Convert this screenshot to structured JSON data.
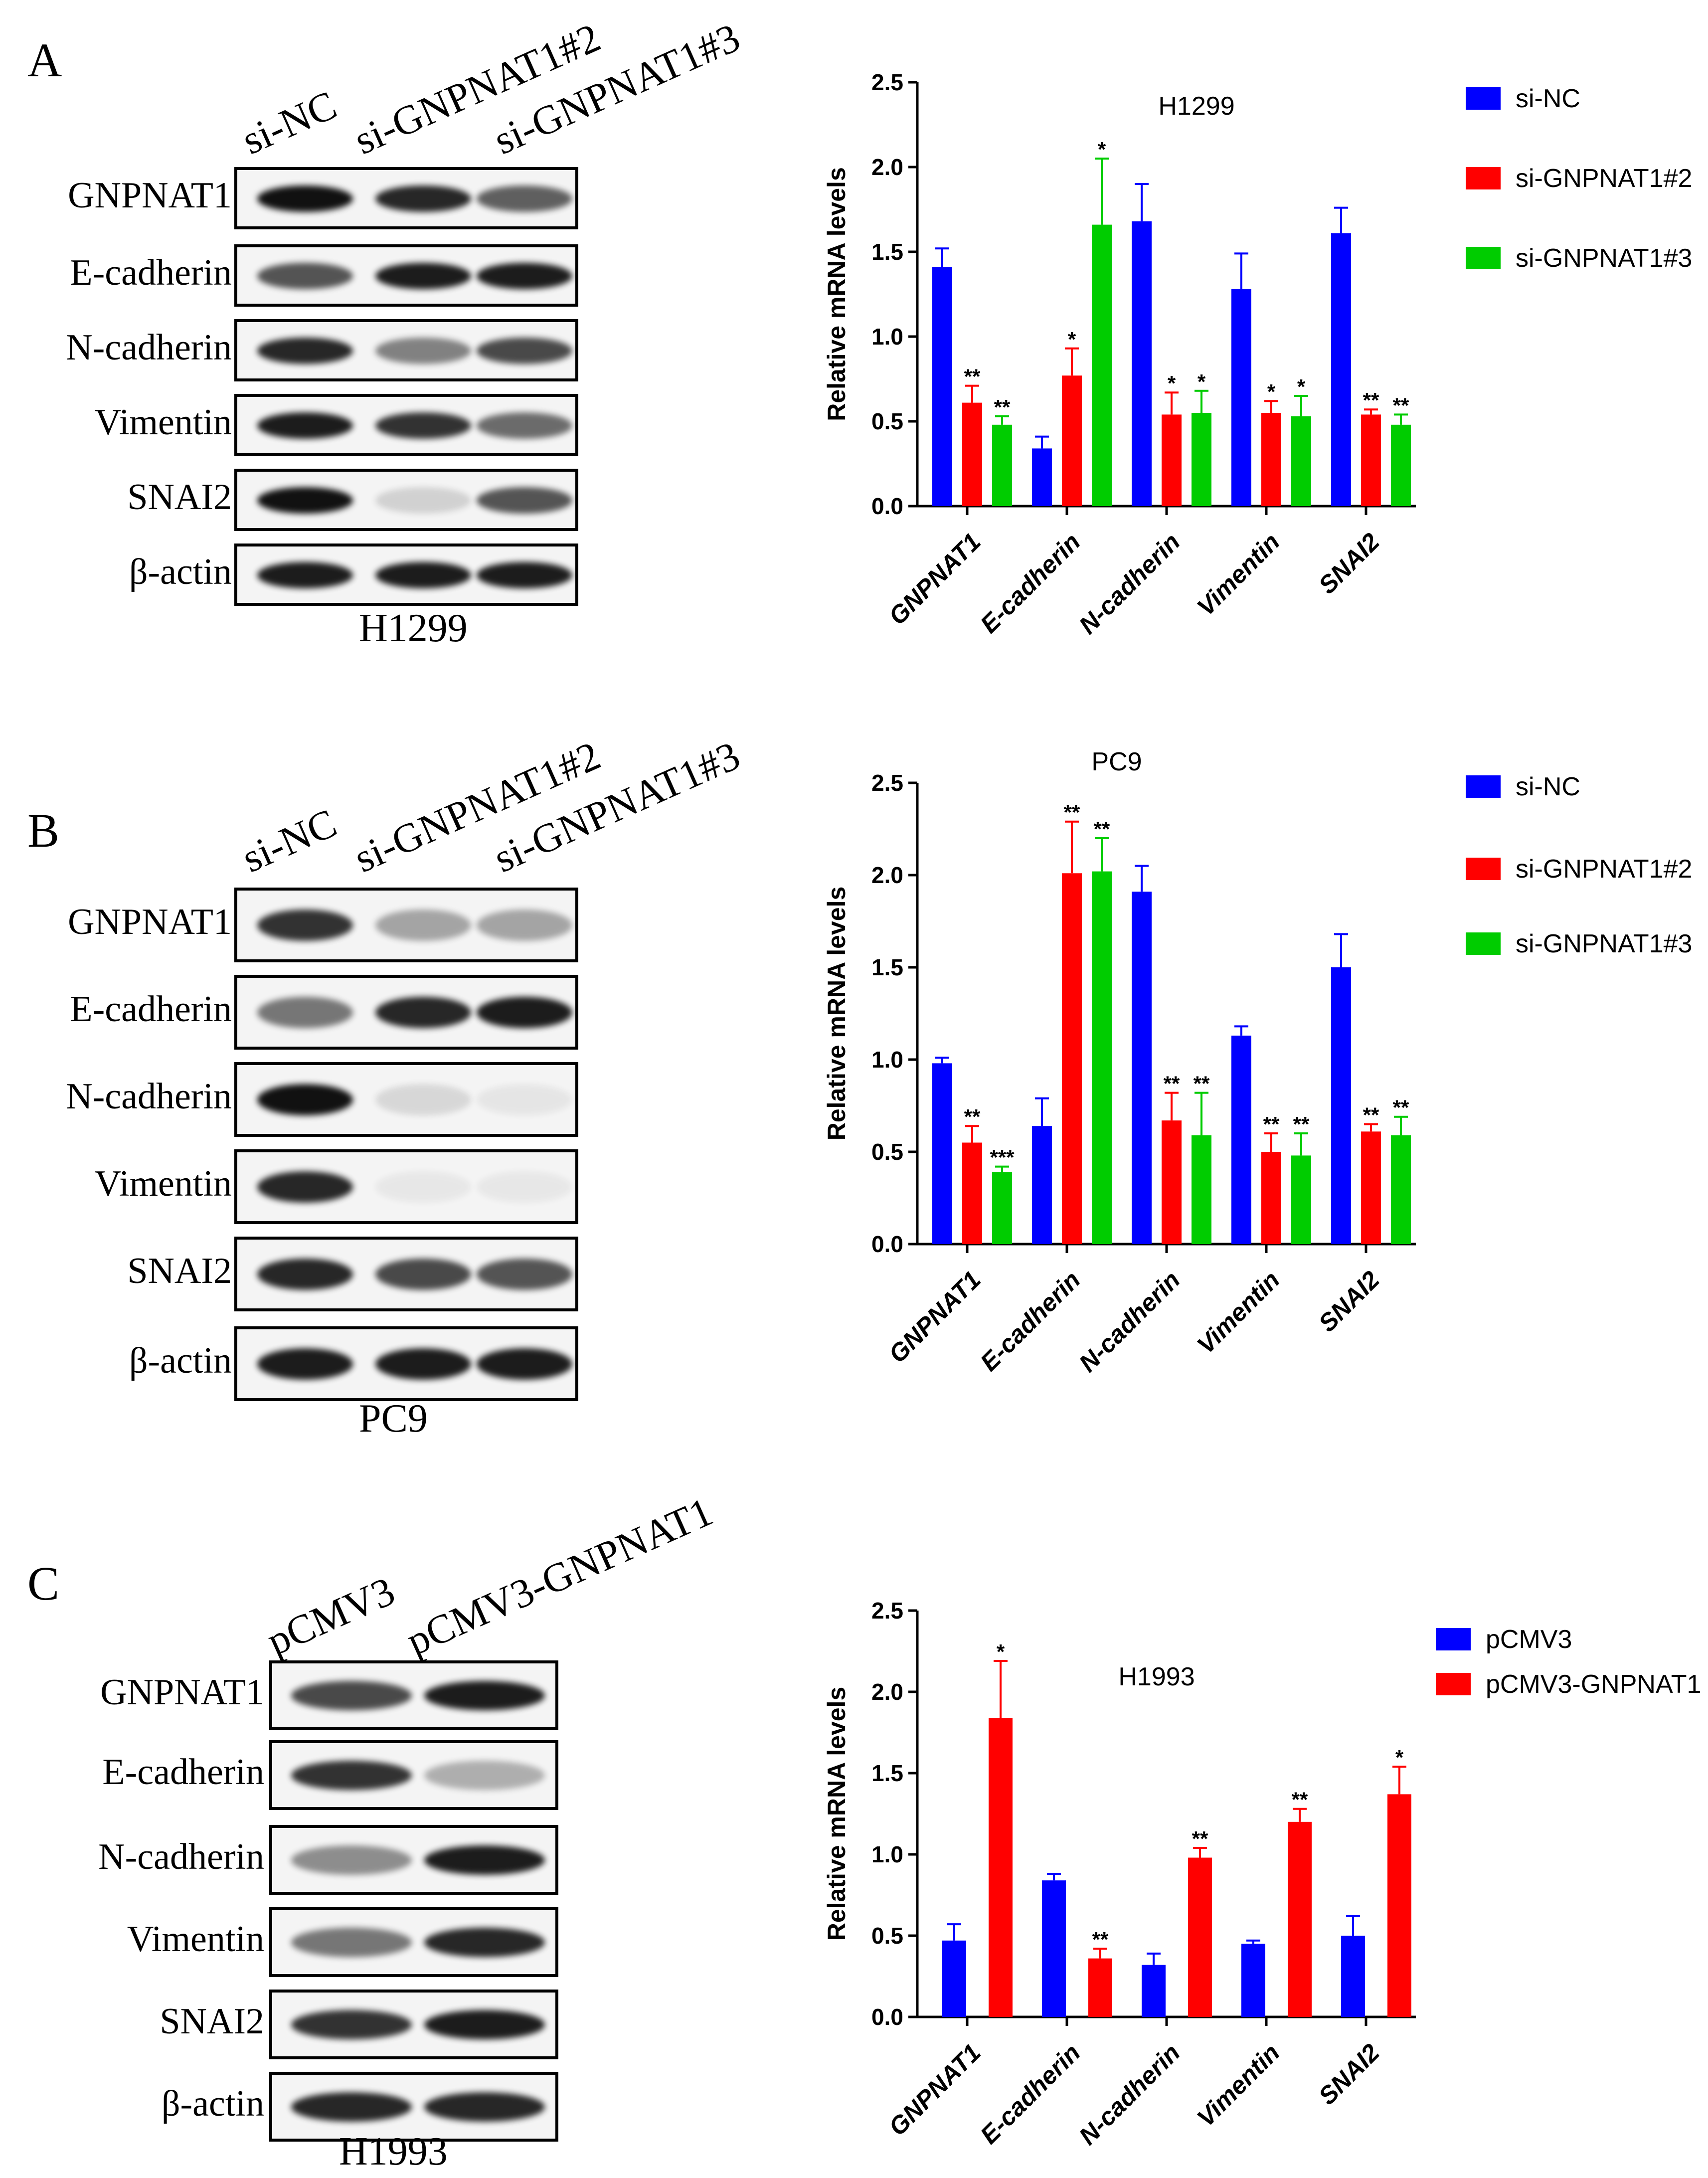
{
  "panels": [
    {
      "letter": "A",
      "cell_line": "H1299",
      "lanes": [
        "si-NC",
        "si-GNPNAT1#2",
        "si-GNPNAT1#3"
      ],
      "proteins": [
        "GNPNAT1",
        "E-cadherin",
        "N-cadherin",
        "Vimentin",
        "SNAI2",
        "β-actin"
      ],
      "band_intensity": [
        [
          1.0,
          0.9,
          0.65
        ],
        [
          0.7,
          0.95,
          0.95
        ],
        [
          0.9,
          0.5,
          0.75
        ],
        [
          0.95,
          0.85,
          0.6
        ],
        [
          1.0,
          0.15,
          0.7
        ],
        [
          0.95,
          0.95,
          0.95
        ]
      ]
    },
    {
      "letter": "B",
      "cell_line": "PC9",
      "lanes": [
        "si-NC",
        "si-GNPNAT1#2",
        "si-GNPNAT1#3"
      ],
      "proteins": [
        "GNPNAT1",
        "E-cadherin",
        "N-cadherin",
        "Vimentin",
        "SNAI2",
        "β-actin"
      ],
      "band_intensity": [
        [
          0.85,
          0.35,
          0.35
        ],
        [
          0.55,
          0.9,
          0.95
        ],
        [
          1.0,
          0.12,
          0.06
        ],
        [
          0.9,
          0.05,
          0.05
        ],
        [
          0.9,
          0.75,
          0.7
        ],
        [
          0.95,
          0.95,
          0.95
        ]
      ]
    },
    {
      "letter": "C",
      "cell_line": "H1993",
      "lanes": [
        "pCMV3",
        "pCMV3-GNPNAT1"
      ],
      "proteins": [
        "GNPNAT1",
        "E-cadherin",
        "N-cadherin",
        "Vimentin",
        "SNAI2",
        "β-actin"
      ],
      "band_intensity": [
        [
          0.75,
          0.95
        ],
        [
          0.85,
          0.3
        ],
        [
          0.45,
          0.95
        ],
        [
          0.55,
          0.9
        ],
        [
          0.85,
          0.95
        ],
        [
          0.9,
          0.9
        ]
      ]
    }
  ],
  "chart_data": [
    {
      "type": "bar",
      "title": "H1299",
      "ylabel": "Relative mRNA levels",
      "ylim": [
        0,
        2.5
      ],
      "yticks": [
        "0.0",
        "0.5",
        "1.0",
        "1.5",
        "2.0",
        "2.5"
      ],
      "categories": [
        "GNPNAT1",
        "E-cadherin",
        "N-cadherin",
        "Vimentin",
        "SNAI2"
      ],
      "series": [
        {
          "name": "si-NC",
          "color": "#0000ff",
          "values": [
            1.41,
            0.34,
            1.68,
            1.28,
            1.61
          ],
          "errors": [
            0.11,
            0.07,
            0.22,
            0.21,
            0.15
          ],
          "sig": [
            "",
            "",
            "",
            "",
            ""
          ]
        },
        {
          "name": "si-GNPNAT1#2",
          "color": "#ff0000",
          "values": [
            0.61,
            0.77,
            0.54,
            0.55,
            0.54
          ],
          "errors": [
            0.1,
            0.16,
            0.13,
            0.07,
            0.03
          ],
          "sig": [
            "**",
            "*",
            "*",
            "*",
            "**"
          ]
        },
        {
          "name": "si-GNPNAT1#3",
          "color": "#00cc00",
          "values": [
            0.48,
            1.66,
            0.55,
            0.53,
            0.48
          ],
          "errors": [
            0.05,
            0.39,
            0.13,
            0.12,
            0.06
          ],
          "sig": [
            "**",
            "*",
            "*",
            "*",
            "**"
          ]
        }
      ]
    },
    {
      "type": "bar",
      "title": "PC9",
      "ylabel": "Relative mRNA levels",
      "ylim": [
        0,
        2.5
      ],
      "yticks": [
        "0.0",
        "0.5",
        "1.0",
        "1.5",
        "2.0",
        "2.5"
      ],
      "categories": [
        "GNPNAT1",
        "E-cadherin",
        "N-cadherin",
        "Vimentin",
        "SNAI2"
      ],
      "series": [
        {
          "name": "si-NC",
          "color": "#0000ff",
          "values": [
            0.98,
            0.64,
            1.91,
            1.13,
            1.5
          ],
          "errors": [
            0.03,
            0.15,
            0.14,
            0.05,
            0.18
          ],
          "sig": [
            "",
            "",
            "",
            "",
            ""
          ]
        },
        {
          "name": "si-GNPNAT1#2",
          "color": "#ff0000",
          "values": [
            0.55,
            2.01,
            0.67,
            0.5,
            0.61
          ],
          "errors": [
            0.09,
            0.28,
            0.15,
            0.1,
            0.04
          ],
          "sig": [
            "**",
            "**",
            "**",
            "**",
            "**"
          ]
        },
        {
          "name": "si-GNPNAT1#3",
          "color": "#00cc00",
          "values": [
            0.39,
            2.02,
            0.59,
            0.48,
            0.59
          ],
          "errors": [
            0.03,
            0.18,
            0.23,
            0.12,
            0.1
          ],
          "sig": [
            "***",
            "**",
            "**",
            "**",
            "**"
          ]
        }
      ]
    },
    {
      "type": "bar",
      "title": "H1993",
      "ylabel": "Relative mRNA levels",
      "ylim": [
        0,
        2.5
      ],
      "yticks": [
        "0.0",
        "0.5",
        "1.0",
        "1.5",
        "2.0",
        "2.5"
      ],
      "categories": [
        "GNPNAT1",
        "E-cadherin",
        "N-cadherin",
        "Vimentin",
        "SNAI2"
      ],
      "series": [
        {
          "name": "pCMV3",
          "color": "#0000ff",
          "values": [
            0.47,
            0.84,
            0.32,
            0.45,
            0.5
          ],
          "errors": [
            0.1,
            0.04,
            0.07,
            0.02,
            0.12
          ],
          "sig": [
            "",
            "",
            "",
            "",
            ""
          ]
        },
        {
          "name": "pCMV3-GNPNAT1",
          "color": "#ff0000",
          "values": [
            1.84,
            0.36,
            0.98,
            1.2,
            1.37
          ],
          "errors": [
            0.35,
            0.06,
            0.06,
            0.08,
            0.17
          ],
          "sig": [
            "*",
            "**",
            "**",
            "**",
            "*"
          ]
        }
      ]
    }
  ]
}
